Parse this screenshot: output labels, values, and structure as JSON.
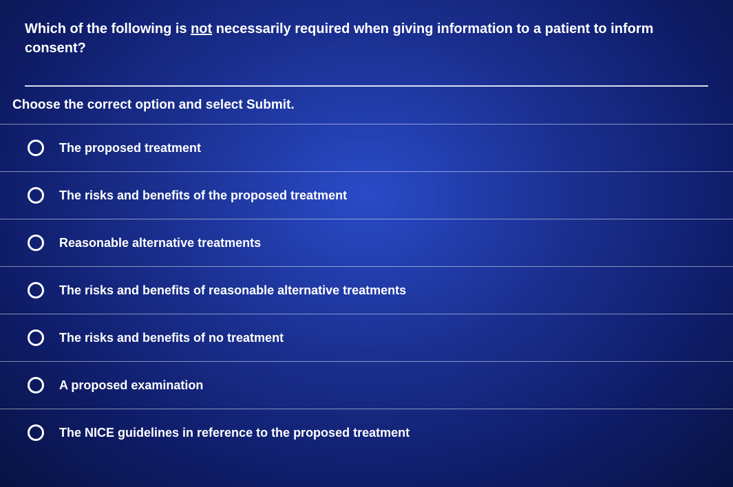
{
  "colors": {
    "background_center": "#2a4bc8",
    "background_mid": "#1a2f8f",
    "background_outer": "#081242",
    "text": "#ffffff",
    "divider": "rgba(255,255,255,0.5)",
    "hr": "rgba(255,255,255,0.85)",
    "radio_border": "#ffffff"
  },
  "typography": {
    "question_fontsize": 20,
    "instruction_fontsize": 19,
    "option_fontsize": 18,
    "font_weight": 700,
    "font_family": "Arial"
  },
  "question": {
    "prefix": "Which of the following is ",
    "emphasis": "not",
    "suffix": " necessarily required when giving information to a patient to inform consent?"
  },
  "instruction": "Choose the correct option and select Submit.",
  "options": [
    {
      "label": "The proposed treatment",
      "selected": false
    },
    {
      "label": "The risks and benefits of the proposed treatment",
      "selected": false
    },
    {
      "label": "Reasonable alternative treatments",
      "selected": false
    },
    {
      "label": "The risks and benefits of reasonable alternative treatments",
      "selected": false
    },
    {
      "label": "The risks and benefits of no treatment",
      "selected": false
    },
    {
      "label": "A proposed examination",
      "selected": false
    },
    {
      "label": "The NICE guidelines in reference to the proposed treatment",
      "selected": false
    }
  ]
}
